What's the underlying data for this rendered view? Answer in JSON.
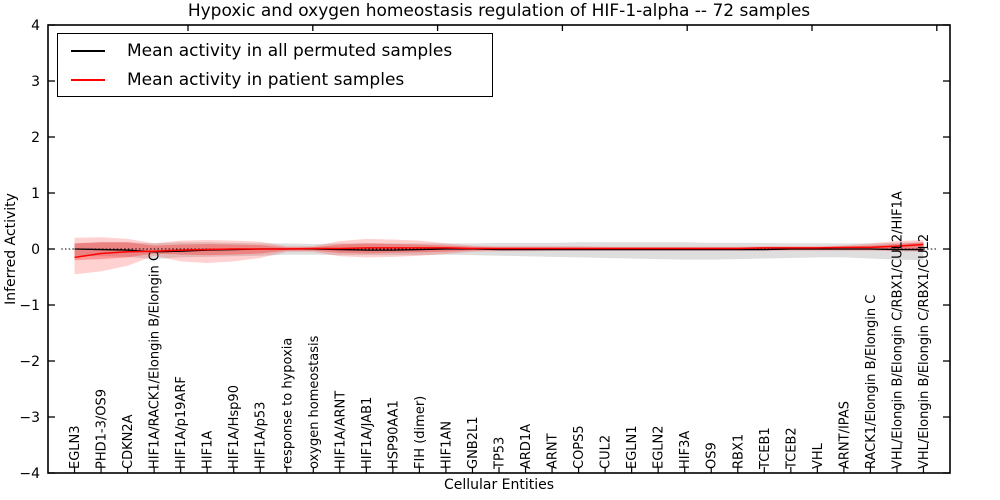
{
  "figure": {
    "title": "Hypoxic and oxygen homeostasis regulation of HIF-1-alpha -- 72 samples",
    "xlabel": "Cellular Entities",
    "ylabel": "Inferred Activity",
    "sample_count_in_title": "72 samples"
  },
  "legend": {
    "entries": [
      {
        "label": "Mean activity in all permuted samples",
        "color": "#000000"
      },
      {
        "label": "Mean activity in patient samples",
        "color": "#ff0000"
      }
    ]
  },
  "chart_data": {
    "type": "line",
    "title": "Hypoxic and oxygen homeostasis regulation of HIF-1-alpha -- 72 samples",
    "xlabel": "Cellular Entities",
    "ylabel": "Inferred Activity",
    "ylim": [
      -4,
      4
    ],
    "grid": false,
    "legend_position": "upper left",
    "zero_reference_line": true,
    "yticks": [
      {
        "value": 4,
        "label": "4"
      },
      {
        "value": 3,
        "label": "3"
      },
      {
        "value": 2,
        "label": "2"
      },
      {
        "value": 1,
        "label": "1"
      },
      {
        "value": 0,
        "label": "0"
      },
      {
        "value": -1,
        "label": "−1"
      },
      {
        "value": -2,
        "label": "−2"
      },
      {
        "value": -3,
        "label": "−3"
      },
      {
        "value": -4,
        "label": "−4"
      }
    ],
    "categories": [
      "EGLN3",
      "PHD1-3/OS9",
      "CDKN2A",
      "HIF1A/RACK1/Elongin B/Elongin C",
      "HIF1A/p19ARF",
      "HIF1A",
      "HIF1A/Hsp90",
      "HIF1A/p53",
      "response to hypoxia",
      "oxygen homeostasis",
      "HIF1A/ARNT",
      "HIF1A/JAB1",
      "HSP90AA1",
      "FIH (dimer)",
      "HIF1AN",
      "GNB2L1",
      "TP53",
      "ARD1A",
      "ARNT",
      "COPS5",
      "CUL2",
      "EGLN1",
      "EGLN2",
      "HIF3A",
      "OS9",
      "RBX1",
      "TCEB1",
      "TCEB2",
      "VHL",
      "ARNT/IPAS",
      "RACK1/Elongin B/Elongin C",
      "VHL/Elongin B/Elongin C/RBX1/CUL2/HIF1A",
      "VHL/Elongin B/Elongin C/RBX1/CUL2"
    ],
    "series": [
      {
        "name": "Mean activity in all permuted samples",
        "color": "#000000",
        "width": 1.3,
        "values": [
          0,
          -0.01,
          -0.02,
          -0.05,
          -0.04,
          -0.02,
          -0.01,
          0,
          0,
          0,
          -0.01,
          -0.02,
          -0.02,
          -0.01,
          0,
          0,
          -0.01,
          -0.01,
          -0.01,
          -0.01,
          -0.01,
          -0.01,
          -0.01,
          -0.01,
          -0.01,
          -0.01,
          -0.01,
          0,
          0,
          0,
          0,
          -0.01,
          -0.01
        ]
      },
      {
        "name": "Mean activity in patient samples",
        "color": "#ff0000",
        "width": 1.5,
        "values": [
          -0.15,
          -0.08,
          -0.05,
          -0.04,
          -0.02,
          -0.01,
          0,
          0,
          0,
          0.01,
          0.01,
          0.02,
          0.02,
          0.02,
          0.02,
          0.01,
          0.01,
          0.01,
          0.01,
          0.01,
          0.01,
          0.01,
          0.01,
          0.01,
          0.01,
          0.01,
          0.02,
          0.02,
          0.02,
          0.03,
          0.03,
          0.05,
          0.08
        ]
      }
    ],
    "bands": [
      {
        "name": "permuted-samples-range",
        "color": "#000000",
        "opacity": 0.13,
        "upper": [
          0.1,
          0.12,
          0.12,
          0.1,
          0.12,
          0.12,
          0.11,
          0.1,
          0.1,
          0.09,
          0.1,
          0.1,
          0.1,
          0.1,
          0.1,
          0.1,
          0.11,
          0.11,
          0.11,
          0.12,
          0.12,
          0.12,
          0.12,
          0.12,
          0.11,
          0.11,
          0.11,
          0.1,
          0.1,
          0.1,
          0.1,
          0.11,
          0.12
        ],
        "lower": [
          -0.12,
          -0.13,
          -0.14,
          -0.18,
          -0.15,
          -0.14,
          -0.13,
          -0.12,
          -0.1,
          -0.1,
          -0.11,
          -0.11,
          -0.11,
          -0.11,
          -0.1,
          -0.11,
          -0.12,
          -0.13,
          -0.14,
          -0.15,
          -0.16,
          -0.17,
          -0.18,
          -0.19,
          -0.19,
          -0.18,
          -0.17,
          -0.16,
          -0.15,
          -0.15,
          -0.17,
          -0.19,
          -0.2
        ]
      },
      {
        "name": "patient-samples-range-outer",
        "color": "#ff0000",
        "opacity": 0.18,
        "upper": [
          0.2,
          0.21,
          0.18,
          0.1,
          0.15,
          0.16,
          0.15,
          0.13,
          0.05,
          0.05,
          0.14,
          0.18,
          0.17,
          0.15,
          0.1,
          0.06,
          0.05,
          0.05,
          0.05,
          0.05,
          0.04,
          0.04,
          0.04,
          0.04,
          0.04,
          0.04,
          0.05,
          0.05,
          0.05,
          0.06,
          0.1,
          0.14,
          0.16
        ],
        "lower": [
          -0.45,
          -0.4,
          -0.3,
          -0.12,
          -0.22,
          -0.25,
          -0.22,
          -0.16,
          -0.05,
          -0.05,
          -0.13,
          -0.15,
          -0.14,
          -0.12,
          -0.09,
          -0.05,
          -0.04,
          -0.04,
          -0.03,
          -0.03,
          -0.03,
          -0.03,
          -0.03,
          -0.03,
          -0.03,
          -0.03,
          -0.03,
          -0.03,
          -0.03,
          -0.03,
          -0.03,
          -0.04,
          -0.05
        ]
      },
      {
        "name": "patient-samples-range-inner",
        "color": "#ff0000",
        "opacity": 0.28,
        "upper": [
          0.1,
          0.12,
          0.12,
          0.06,
          0.08,
          0.09,
          0.08,
          0.07,
          0.03,
          0.03,
          0.08,
          0.1,
          0.09,
          0.08,
          0.06,
          0.04,
          0.03,
          0.03,
          0.03,
          0.03,
          0.03,
          0.03,
          0.03,
          0.03,
          0.03,
          0.03,
          0.03,
          0.03,
          0.03,
          0.04,
          0.06,
          0.09,
          0.12
        ],
        "lower": [
          -0.2,
          -0.18,
          -0.15,
          -0.08,
          -0.1,
          -0.11,
          -0.1,
          -0.08,
          -0.03,
          -0.03,
          -0.07,
          -0.08,
          -0.07,
          -0.06,
          -0.05,
          -0.03,
          -0.02,
          -0.02,
          -0.02,
          -0.02,
          -0.02,
          -0.02,
          -0.02,
          -0.02,
          -0.02,
          -0.02,
          -0.02,
          -0.02,
          -0.02,
          -0.02,
          -0.02,
          -0.02,
          -0.03
        ]
      }
    ]
  }
}
